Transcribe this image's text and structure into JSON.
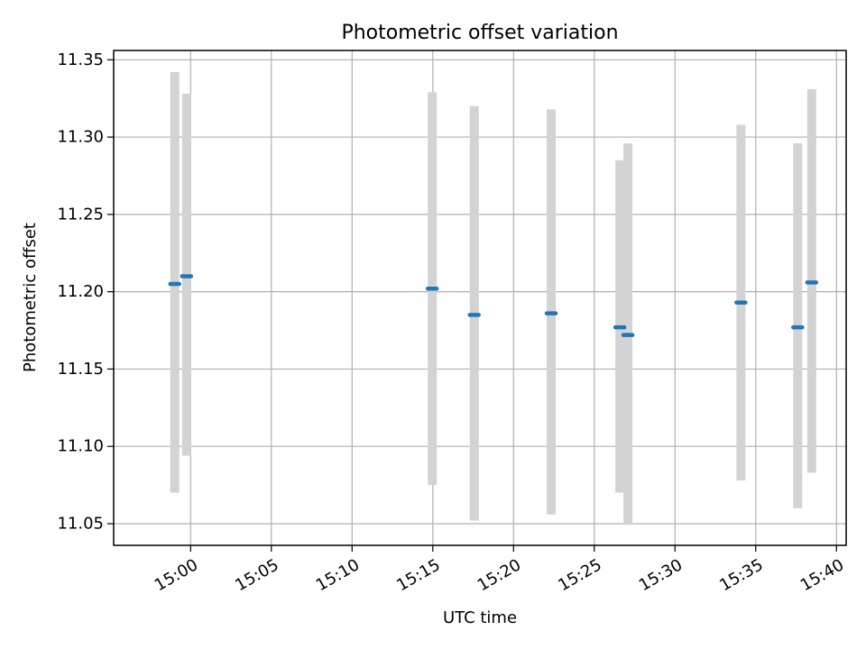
{
  "chart_data": {
    "type": "errorbar",
    "title": "Photometric offset variation",
    "xlabel": "UTC time",
    "ylabel": "Photometric offset",
    "grid": true,
    "x_unit": "UTC HH:MM",
    "xlim": [
      "14:55:14",
      "15:40:36"
    ],
    "ylim": [
      11.036,
      11.356
    ],
    "x_ticks": [
      "15:00",
      "15:05",
      "15:10",
      "15:15",
      "15:20",
      "15:25",
      "15:30",
      "15:35",
      "15:40"
    ],
    "y_ticks": [
      11.05,
      11.1,
      11.15,
      11.2,
      11.25,
      11.3,
      11.35
    ],
    "y_tick_labels": [
      "11.05",
      "11.10",
      "11.15",
      "11.20",
      "11.25",
      "11.30",
      "11.35"
    ],
    "colors": {
      "marker": "#1f77b4",
      "errorbar": "#d3d3d3",
      "grid": "#b0b0b0",
      "axes": "#000000"
    },
    "points": [
      {
        "time": "14:59:01",
        "y": 11.205,
        "y_low": 11.07,
        "y_high": 11.342
      },
      {
        "time": "14:59:45",
        "y": 11.21,
        "y_low": 11.094,
        "y_high": 11.328
      },
      {
        "time": "15:14:58",
        "y": 11.202,
        "y_low": 11.075,
        "y_high": 11.329
      },
      {
        "time": "15:17:34",
        "y": 11.185,
        "y_low": 11.052,
        "y_high": 11.32
      },
      {
        "time": "15:22:20",
        "y": 11.186,
        "y_low": 11.056,
        "y_high": 11.318
      },
      {
        "time": "15:26:35",
        "y": 11.177,
        "y_low": 11.07,
        "y_high": 11.285
      },
      {
        "time": "15:27:05",
        "y": 11.172,
        "y_low": 11.05,
        "y_high": 11.296
      },
      {
        "time": "15:34:05",
        "y": 11.193,
        "y_low": 11.078,
        "y_high": 11.308
      },
      {
        "time": "15:37:36",
        "y": 11.177,
        "y_low": 11.06,
        "y_high": 11.296
      },
      {
        "time": "15:38:28",
        "y": 11.206,
        "y_low": 11.083,
        "y_high": 11.331
      }
    ]
  }
}
